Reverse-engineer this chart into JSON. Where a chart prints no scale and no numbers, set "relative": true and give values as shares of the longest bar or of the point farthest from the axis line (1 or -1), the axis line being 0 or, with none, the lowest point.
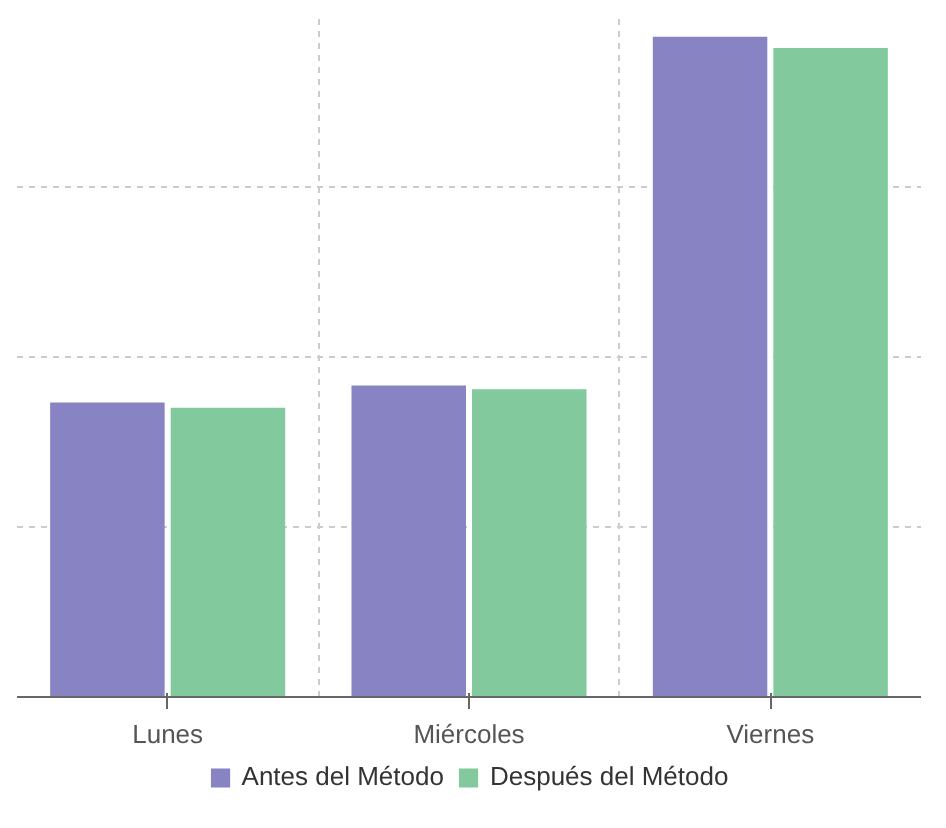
{
  "chart_data": {
    "type": "bar",
    "relative": true,
    "categories": [
      "Lunes",
      "Miércoles",
      "Viernes"
    ],
    "series": [
      {
        "name": "Antes del Método",
        "color": "#8884c4",
        "values": [
          0.446,
          0.472,
          1
        ]
      },
      {
        "name": "Después del Método",
        "color": "#82ca9d",
        "values": [
          0.438,
          0.466,
          0.983
        ]
      }
    ],
    "grid": true,
    "legend": "bottom"
  }
}
